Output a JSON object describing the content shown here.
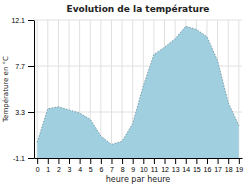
{
  "chart_data": {
    "type": "area",
    "title": "Evolution de la température",
    "xlabel": "heure par heure",
    "ylabel": "Température en °C",
    "x": [
      0,
      1,
      2,
      3,
      4,
      5,
      6,
      7,
      8,
      9,
      10,
      11,
      12,
      13,
      14,
      15,
      16,
      17,
      18,
      19
    ],
    "values": [
      0.4,
      3.6,
      3.8,
      3.5,
      3.2,
      2.6,
      1.0,
      0.2,
      0.5,
      2.2,
      5.8,
      8.8,
      9.5,
      10.3,
      11.5,
      11.2,
      10.5,
      8.2,
      4.2,
      2.0
    ],
    "color": "#a0cfe0",
    "line_style": "dotted",
    "xlim": [
      -0.3,
      19.3
    ],
    "xticks": [
      0,
      1,
      2,
      3,
      4,
      5,
      6,
      7,
      8,
      9,
      10,
      11,
      12,
      13,
      14,
      15,
      16,
      17,
      18,
      19
    ],
    "ylim": [
      -1.1,
      12.1
    ],
    "yticks": [
      -1.1,
      3.3,
      7.7,
      12.1
    ],
    "grid": true
  }
}
